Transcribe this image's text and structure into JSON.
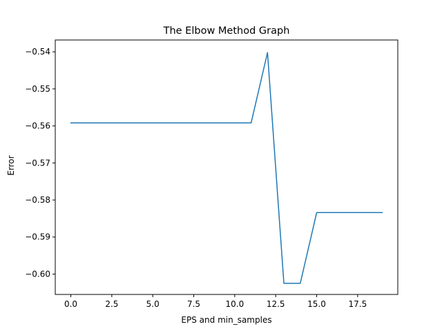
{
  "chart_data": {
    "type": "line",
    "title": "The Elbow Method Graph",
    "xlabel": "EPS and min_samples",
    "ylabel": "Error",
    "xlim": [
      -0.95,
      19.95
    ],
    "ylim": [
      -0.6055,
      -0.5368
    ],
    "grid": false,
    "xticks": [
      0.0,
      2.5,
      5.0,
      7.5,
      10.0,
      12.5,
      15.0,
      17.5
    ],
    "xtick_labels": [
      "0.0",
      "2.5",
      "5.0",
      "7.5",
      "10.0",
      "12.5",
      "15.0",
      "17.5"
    ],
    "yticks": [
      -0.54,
      -0.55,
      -0.56,
      -0.57,
      -0.58,
      -0.59,
      -0.6
    ],
    "ytick_labels": [
      "−0.54",
      "−0.55",
      "−0.56",
      "−0.57",
      "−0.58",
      "−0.59",
      "−0.60"
    ],
    "series": [
      {
        "color": "#1f77b4",
        "x": [
          0,
          1,
          2,
          3,
          4,
          5,
          6,
          7,
          8,
          9,
          10,
          11,
          12,
          13,
          14,
          15,
          16,
          17,
          18,
          19
        ],
        "y": [
          -0.5592,
          -0.5592,
          -0.5592,
          -0.5592,
          -0.5592,
          -0.5592,
          -0.5592,
          -0.5592,
          -0.5592,
          -0.5592,
          -0.5592,
          -0.5592,
          -0.5402,
          -0.6025,
          -0.6025,
          -0.5834,
          -0.5834,
          -0.5834,
          -0.5834,
          -0.5834
        ]
      }
    ]
  }
}
